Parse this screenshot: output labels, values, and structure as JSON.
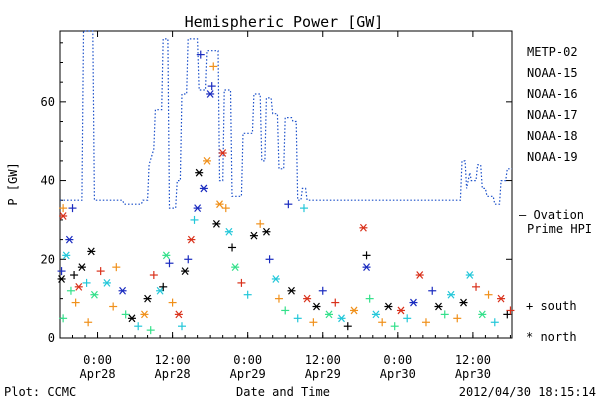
{
  "chart_data": {
    "type": "scatter",
    "title": "Hemispheric Power [GW]",
    "ylabel": "P [GW]",
    "xlabel": "Date and Time",
    "ylim": [
      0,
      78
    ],
    "yticks": [
      0,
      20,
      40,
      60
    ],
    "xlim": [
      "2012-04-27T18:00",
      "2012-04-30T18:15"
    ],
    "xticks": [
      {
        "time": "2012-04-28T00:00",
        "label1": "0:00",
        "label2": "Apr28"
      },
      {
        "time": "2012-04-28T12:00",
        "label1": "12:00",
        "label2": "Apr28"
      },
      {
        "time": "2012-04-29T00:00",
        "label1": "0:00",
        "label2": "Apr29"
      },
      {
        "time": "2012-04-29T12:00",
        "label1": "12:00",
        "label2": "Apr29"
      },
      {
        "time": "2012-04-30T00:00",
        "label1": "0:00",
        "label2": "Apr30"
      },
      {
        "time": "2012-04-30T12:00",
        "label1": "12:00",
        "label2": "Apr30"
      }
    ],
    "legend_position": "right",
    "series": [
      {
        "name": "METP-02",
        "color": "#000000"
      },
      {
        "name": "NOAA-15",
        "color": "#1a2bbf"
      },
      {
        "name": "NOAA-16",
        "color": "#22c7d9"
      },
      {
        "name": "NOAA-17",
        "color": "#33e08a"
      },
      {
        "name": "NOAA-18",
        "color": "#f0901a"
      },
      {
        "name": "NOAA-19",
        "color": "#d9301a"
      }
    ],
    "model_line": {
      "label_line1": "— Ovation",
      "label_line2": "Prime HPI",
      "color": "#1a4fc9",
      "points": [
        [
          "2012-04-27T18:00",
          35
        ],
        [
          "2012-04-27T21:30",
          35
        ],
        [
          "2012-04-27T21:45",
          78
        ],
        [
          "2012-04-27T23:15",
          78
        ],
        [
          "2012-04-27T23:30",
          35
        ],
        [
          "2012-04-28T04:00",
          35
        ],
        [
          "2012-04-28T04:15",
          34
        ],
        [
          "2012-04-28T07:00",
          34
        ],
        [
          "2012-04-28T07:15",
          35
        ],
        [
          "2012-04-28T08:00",
          35
        ],
        [
          "2012-04-28T08:15",
          44
        ],
        [
          "2012-04-28T09:00",
          48
        ],
        [
          "2012-04-28T09:15",
          58
        ],
        [
          "2012-04-28T10:15",
          58
        ],
        [
          "2012-04-28T10:30",
          76
        ],
        [
          "2012-04-28T11:15",
          76
        ],
        [
          "2012-04-28T11:30",
          33
        ],
        [
          "2012-04-28T12:30",
          33
        ],
        [
          "2012-04-28T12:45",
          40
        ],
        [
          "2012-04-28T13:15",
          40
        ],
        [
          "2012-04-28T13:30",
          62
        ],
        [
          "2012-04-28T14:15",
          62
        ],
        [
          "2012-04-28T14:30",
          76
        ],
        [
          "2012-04-28T16:00",
          76
        ],
        [
          "2012-04-28T16:15",
          63
        ],
        [
          "2012-04-28T17:15",
          63
        ],
        [
          "2012-04-28T17:30",
          73
        ],
        [
          "2012-04-28T19:15",
          73
        ],
        [
          "2012-04-28T19:30",
          40
        ],
        [
          "2012-04-28T20:00",
          40
        ],
        [
          "2012-04-28T20:15",
          63
        ],
        [
          "2012-04-28T21:15",
          63
        ],
        [
          "2012-04-28T21:30",
          36
        ],
        [
          "2012-04-28T23:00",
          36
        ],
        [
          "2012-04-28T23:15",
          52
        ],
        [
          "2012-04-29T00:45",
          52
        ],
        [
          "2012-04-29T01:00",
          62
        ],
        [
          "2012-04-29T02:00",
          62
        ],
        [
          "2012-04-29T02:15",
          45
        ],
        [
          "2012-04-29T02:45",
          45
        ],
        [
          "2012-04-29T03:00",
          61
        ],
        [
          "2012-04-29T03:45",
          61
        ],
        [
          "2012-04-29T04:00",
          57
        ],
        [
          "2012-04-29T04:45",
          57
        ],
        [
          "2012-04-29T05:00",
          43
        ],
        [
          "2012-04-29T05:45",
          43
        ],
        [
          "2012-04-29T06:00",
          56
        ],
        [
          "2012-04-29T07:00",
          56
        ],
        [
          "2012-04-29T07:15",
          55
        ],
        [
          "2012-04-29T07:45",
          55
        ],
        [
          "2012-04-29T08:00",
          35
        ],
        [
          "2012-04-29T08:30",
          35
        ],
        [
          "2012-04-29T08:45",
          38
        ],
        [
          "2012-04-29T09:15",
          38
        ],
        [
          "2012-04-29T09:30",
          35
        ],
        [
          "2012-04-30T10:00",
          35
        ],
        [
          "2012-04-30T10:15",
          45
        ],
        [
          "2012-04-30T10:45",
          45
        ],
        [
          "2012-04-30T11:00",
          38
        ],
        [
          "2012-04-30T11:30",
          42
        ],
        [
          "2012-04-30T11:45",
          40
        ],
        [
          "2012-04-30T12:30",
          40
        ],
        [
          "2012-04-30T12:45",
          44
        ],
        [
          "2012-04-30T13:15",
          44
        ],
        [
          "2012-04-30T13:30",
          38
        ],
        [
          "2012-04-30T14:00",
          38
        ],
        [
          "2012-04-30T14:15",
          36
        ],
        [
          "2012-04-30T15:15",
          36
        ],
        [
          "2012-04-30T15:30",
          34
        ],
        [
          "2012-04-30T16:15",
          34
        ],
        [
          "2012-04-30T16:30",
          40
        ],
        [
          "2012-04-30T17:15",
          40
        ],
        [
          "2012-04-30T17:30",
          43
        ],
        [
          "2012-04-30T18:15",
          43
        ]
      ]
    },
    "points": [
      {
        "t": "2012-04-27T18:15",
        "v": 17,
        "series": "NOAA-15",
        "hemisphere": "south"
      },
      {
        "t": "2012-04-27T18:15",
        "v": 15,
        "series": "METP-02",
        "hemisphere": "north"
      },
      {
        "t": "2012-04-27T18:30",
        "v": 33,
        "series": "NOAA-18",
        "hemisphere": "south"
      },
      {
        "t": "2012-04-27T18:30",
        "v": 31,
        "series": "NOAA-19",
        "hemisphere": "north"
      },
      {
        "t": "2012-04-27T18:30",
        "v": 5,
        "series": "NOAA-17",
        "hemisphere": "south"
      },
      {
        "t": "2012-04-27T19:00",
        "v": 21,
        "series": "NOAA-16",
        "hemisphere": "north"
      },
      {
        "t": "2012-04-27T19:30",
        "v": 25,
        "series": "NOAA-15",
        "hemisphere": "north"
      },
      {
        "t": "2012-04-27T19:45",
        "v": 12,
        "series": "NOAA-17",
        "hemisphere": "south"
      },
      {
        "t": "2012-04-27T20:00",
        "v": 33,
        "series": "NOAA-15",
        "hemisphere": "south"
      },
      {
        "t": "2012-04-27T20:15",
        "v": 16,
        "series": "METP-02",
        "hemisphere": "south"
      },
      {
        "t": "2012-04-27T20:30",
        "v": 9,
        "series": "NOAA-18",
        "hemisphere": "south"
      },
      {
        "t": "2012-04-27T21:00",
        "v": 13,
        "series": "NOAA-19",
        "hemisphere": "north"
      },
      {
        "t": "2012-04-27T21:30",
        "v": 18,
        "series": "METP-02",
        "hemisphere": "north"
      },
      {
        "t": "2012-04-27T22:15",
        "v": 14,
        "series": "NOAA-16",
        "hemisphere": "south"
      },
      {
        "t": "2012-04-27T22:30",
        "v": 4,
        "series": "NOAA-18",
        "hemisphere": "south"
      },
      {
        "t": "2012-04-27T23:00",
        "v": 22,
        "series": "METP-02",
        "hemisphere": "north"
      },
      {
        "t": "2012-04-27T23:30",
        "v": 11,
        "series": "NOAA-17",
        "hemisphere": "north"
      },
      {
        "t": "2012-04-28T00:30",
        "v": 17,
        "series": "NOAA-19",
        "hemisphere": "south"
      },
      {
        "t": "2012-04-28T01:30",
        "v": 14,
        "series": "NOAA-16",
        "hemisphere": "north"
      },
      {
        "t": "2012-04-28T02:30",
        "v": 8,
        "series": "NOAA-18",
        "hemisphere": "south"
      },
      {
        "t": "2012-04-28T03:00",
        "v": 18,
        "series": "NOAA-18",
        "hemisphere": "south"
      },
      {
        "t": "2012-04-28T04:00",
        "v": 12,
        "series": "NOAA-15",
        "hemisphere": "north"
      },
      {
        "t": "2012-04-28T04:30",
        "v": 6,
        "series": "NOAA-17",
        "hemisphere": "south"
      },
      {
        "t": "2012-04-28T05:30",
        "v": 5,
        "series": "METP-02",
        "hemisphere": "north"
      },
      {
        "t": "2012-04-28T06:30",
        "v": 3,
        "series": "NOAA-16",
        "hemisphere": "south"
      },
      {
        "t": "2012-04-28T07:30",
        "v": 6,
        "series": "NOAA-18",
        "hemisphere": "north"
      },
      {
        "t": "2012-04-28T08:00",
        "v": 10,
        "series": "METP-02",
        "hemisphere": "north"
      },
      {
        "t": "2012-04-28T08:30",
        "v": 2,
        "series": "NOAA-17",
        "hemisphere": "south"
      },
      {
        "t": "2012-04-28T09:00",
        "v": 16,
        "series": "NOAA-19",
        "hemisphere": "south"
      },
      {
        "t": "2012-04-28T10:00",
        "v": 12,
        "series": "NOAA-16",
        "hemisphere": "north"
      },
      {
        "t": "2012-04-28T10:30",
        "v": 13,
        "series": "METP-02",
        "hemisphere": "south"
      },
      {
        "t": "2012-04-28T11:00",
        "v": 21,
        "series": "NOAA-17",
        "hemisphere": "north"
      },
      {
        "t": "2012-04-28T11:30",
        "v": 19,
        "series": "NOAA-15",
        "hemisphere": "south"
      },
      {
        "t": "2012-04-28T12:00",
        "v": 9,
        "series": "NOAA-18",
        "hemisphere": "south"
      },
      {
        "t": "2012-04-28T13:00",
        "v": 6,
        "series": "NOAA-19",
        "hemisphere": "north"
      },
      {
        "t": "2012-04-28T13:30",
        "v": 3,
        "series": "NOAA-16",
        "hemisphere": "south"
      },
      {
        "t": "2012-04-28T14:00",
        "v": 17,
        "series": "METP-02",
        "hemisphere": "north"
      },
      {
        "t": "2012-04-28T14:30",
        "v": 20,
        "series": "NOAA-15",
        "hemisphere": "south"
      },
      {
        "t": "2012-04-28T15:00",
        "v": 25,
        "series": "NOAA-19",
        "hemisphere": "north"
      },
      {
        "t": "2012-04-28T15:30",
        "v": 30,
        "series": "NOAA-16",
        "hemisphere": "south"
      },
      {
        "t": "2012-04-28T16:00",
        "v": 33,
        "series": "NOAA-15",
        "hemisphere": "north"
      },
      {
        "t": "2012-04-28T16:15",
        "v": 42,
        "series": "METP-02",
        "hemisphere": "north"
      },
      {
        "t": "2012-04-28T16:30",
        "v": 72,
        "series": "NOAA-15",
        "hemisphere": "south"
      },
      {
        "t": "2012-04-28T17:00",
        "v": 38,
        "series": "NOAA-15",
        "hemisphere": "north"
      },
      {
        "t": "2012-04-28T17:30",
        "v": 45,
        "series": "NOAA-18",
        "hemisphere": "north"
      },
      {
        "t": "2012-04-28T18:00",
        "v": 62,
        "series": "NOAA-15",
        "hemisphere": "north"
      },
      {
        "t": "2012-04-28T18:30",
        "v": 69,
        "series": "NOAA-18",
        "hemisphere": "south"
      },
      {
        "t": "2012-04-28T18:15",
        "v": 64,
        "series": "NOAA-15",
        "hemisphere": "south"
      },
      {
        "t": "2012-04-28T19:00",
        "v": 29,
        "series": "METP-02",
        "hemisphere": "north"
      },
      {
        "t": "2012-04-28T19:30",
        "v": 34,
        "series": "NOAA-18",
        "hemisphere": "north"
      },
      {
        "t": "2012-04-28T20:00",
        "v": 47,
        "series": "NOAA-19",
        "hemisphere": "north"
      },
      {
        "t": "2012-04-28T20:30",
        "v": 33,
        "series": "NOAA-18",
        "hemisphere": "south"
      },
      {
        "t": "2012-04-28T21:00",
        "v": 27,
        "series": "NOAA-16",
        "hemisphere": "north"
      },
      {
        "t": "2012-04-28T21:30",
        "v": 23,
        "series": "METP-02",
        "hemisphere": "south"
      },
      {
        "t": "2012-04-28T22:00",
        "v": 18,
        "series": "NOAA-17",
        "hemisphere": "north"
      },
      {
        "t": "2012-04-28T23:00",
        "v": 14,
        "series": "NOAA-19",
        "hemisphere": "south"
      },
      {
        "t": "2012-04-29T00:00",
        "v": 11,
        "series": "NOAA-16",
        "hemisphere": "south"
      },
      {
        "t": "2012-04-29T01:00",
        "v": 26,
        "series": "METP-02",
        "hemisphere": "north"
      },
      {
        "t": "2012-04-29T02:00",
        "v": 29,
        "series": "NOAA-18",
        "hemisphere": "south"
      },
      {
        "t": "2012-04-29T03:00",
        "v": 27,
        "series": "METP-02",
        "hemisphere": "north"
      },
      {
        "t": "2012-04-29T03:30",
        "v": 20,
        "series": "NOAA-15",
        "hemisphere": "south"
      },
      {
        "t": "2012-04-29T04:30",
        "v": 15,
        "series": "NOAA-16",
        "hemisphere": "north"
      },
      {
        "t": "2012-04-29T05:00",
        "v": 10,
        "series": "NOAA-18",
        "hemisphere": "south"
      },
      {
        "t": "2012-04-29T06:00",
        "v": 7,
        "series": "NOAA-17",
        "hemisphere": "south"
      },
      {
        "t": "2012-04-29T06:30",
        "v": 34,
        "series": "NOAA-15",
        "hemisphere": "south"
      },
      {
        "t": "2012-04-29T07:00",
        "v": 12,
        "series": "METP-02",
        "hemisphere": "north"
      },
      {
        "t": "2012-04-29T08:00",
        "v": 5,
        "series": "NOAA-16",
        "hemisphere": "south"
      },
      {
        "t": "2012-04-29T09:00",
        "v": 33,
        "series": "NOAA-16",
        "hemisphere": "south"
      },
      {
        "t": "2012-04-29T09:30",
        "v": 10,
        "series": "NOAA-19",
        "hemisphere": "north"
      },
      {
        "t": "2012-04-29T10:30",
        "v": 4,
        "series": "NOAA-18",
        "hemisphere": "south"
      },
      {
        "t": "2012-04-29T11:00",
        "v": 8,
        "series": "METP-02",
        "hemisphere": "north"
      },
      {
        "t": "2012-04-29T12:00",
        "v": 12,
        "series": "NOAA-15",
        "hemisphere": "south"
      },
      {
        "t": "2012-04-29T13:00",
        "v": 6,
        "series": "NOAA-17",
        "hemisphere": "north"
      },
      {
        "t": "2012-04-29T14:00",
        "v": 9,
        "series": "NOAA-19",
        "hemisphere": "south"
      },
      {
        "t": "2012-04-29T15:00",
        "v": 5,
        "series": "NOAA-16",
        "hemisphere": "north"
      },
      {
        "t": "2012-04-29T16:00",
        "v": 3,
        "series": "METP-02",
        "hemisphere": "south"
      },
      {
        "t": "2012-04-29T17:00",
        "v": 7,
        "series": "NOAA-18",
        "hemisphere": "north"
      },
      {
        "t": "2012-04-29T18:30",
        "v": 28,
        "series": "NOAA-19",
        "hemisphere": "north"
      },
      {
        "t": "2012-04-29T19:00",
        "v": 21,
        "series": "METP-02",
        "hemisphere": "south"
      },
      {
        "t": "2012-04-29T19:00",
        "v": 18,
        "series": "NOAA-15",
        "hemisphere": "north"
      },
      {
        "t": "2012-04-29T19:30",
        "v": 10,
        "series": "NOAA-17",
        "hemisphere": "south"
      },
      {
        "t": "2012-04-29T20:30",
        "v": 6,
        "series": "NOAA-16",
        "hemisphere": "north"
      },
      {
        "t": "2012-04-29T21:30",
        "v": 4,
        "series": "NOAA-18",
        "hemisphere": "south"
      },
      {
        "t": "2012-04-29T22:30",
        "v": 8,
        "series": "METP-02",
        "hemisphere": "north"
      },
      {
        "t": "2012-04-29T23:30",
        "v": 3,
        "series": "NOAA-17",
        "hemisphere": "south"
      },
      {
        "t": "2012-04-30T00:30",
        "v": 7,
        "series": "NOAA-19",
        "hemisphere": "north"
      },
      {
        "t": "2012-04-30T01:30",
        "v": 5,
        "series": "NOAA-16",
        "hemisphere": "south"
      },
      {
        "t": "2012-04-30T02:30",
        "v": 9,
        "series": "NOAA-15",
        "hemisphere": "north"
      },
      {
        "t": "2012-04-30T03:30",
        "v": 16,
        "series": "NOAA-19",
        "hemisphere": "north"
      },
      {
        "t": "2012-04-30T04:30",
        "v": 4,
        "series": "NOAA-18",
        "hemisphere": "south"
      },
      {
        "t": "2012-04-30T05:30",
        "v": 12,
        "series": "NOAA-15",
        "hemisphere": "south"
      },
      {
        "t": "2012-04-30T06:30",
        "v": 8,
        "series": "METP-02",
        "hemisphere": "north"
      },
      {
        "t": "2012-04-30T07:30",
        "v": 6,
        "series": "NOAA-17",
        "hemisphere": "south"
      },
      {
        "t": "2012-04-30T08:30",
        "v": 11,
        "series": "NOAA-16",
        "hemisphere": "north"
      },
      {
        "t": "2012-04-30T09:30",
        "v": 5,
        "series": "NOAA-18",
        "hemisphere": "south"
      },
      {
        "t": "2012-04-30T10:30",
        "v": 9,
        "series": "METP-02",
        "hemisphere": "north"
      },
      {
        "t": "2012-04-30T11:30",
        "v": 16,
        "series": "NOAA-16",
        "hemisphere": "north"
      },
      {
        "t": "2012-04-30T12:30",
        "v": 13,
        "series": "NOAA-19",
        "hemisphere": "south"
      },
      {
        "t": "2012-04-30T13:30",
        "v": 6,
        "series": "NOAA-17",
        "hemisphere": "north"
      },
      {
        "t": "2012-04-30T14:30",
        "v": 11,
        "series": "NOAA-18",
        "hemisphere": "south"
      },
      {
        "t": "2012-04-30T15:30",
        "v": 4,
        "series": "NOAA-16",
        "hemisphere": "south"
      },
      {
        "t": "2012-04-30T16:30",
        "v": 10,
        "series": "NOAA-19",
        "hemisphere": "north"
      },
      {
        "t": "2012-04-30T17:30",
        "v": 6,
        "series": "METP-02",
        "hemisphere": "south"
      },
      {
        "t": "2012-04-30T18:00",
        "v": 7,
        "series": "NOAA-19",
        "hemisphere": "south"
      }
    ],
    "marker_key": [
      {
        "symbol": "+",
        "label": "south"
      },
      {
        "symbol": "*",
        "label": "north"
      }
    ]
  },
  "footer": {
    "plot_credit": "Plot: CCMC",
    "timestamp": "2012/04/30 18:15:14"
  }
}
